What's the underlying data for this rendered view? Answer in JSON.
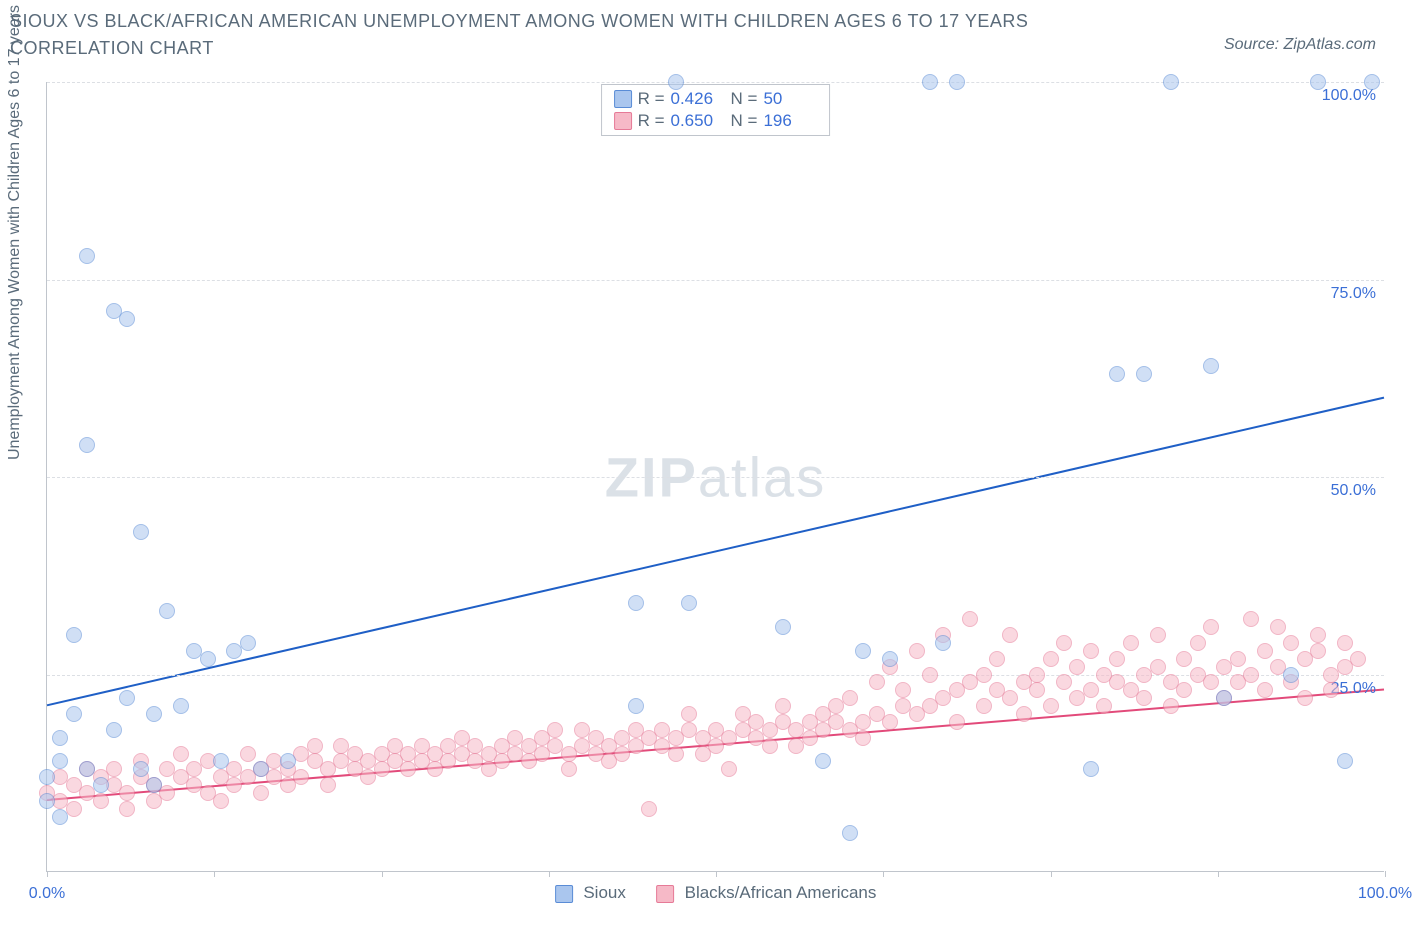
{
  "title": "SIOUX VS BLACK/AFRICAN AMERICAN UNEMPLOYMENT AMONG WOMEN WITH CHILDREN AGES 6 TO 17 YEARS CORRELATION CHART",
  "source": "Source: ZipAtlas.com",
  "y_axis_label": "Unemployment Among Women with Children Ages 6 to 17 years",
  "watermark_bold": "ZIP",
  "watermark_light": "atlas",
  "chart": {
    "type": "scatter",
    "xlim": [
      0,
      100
    ],
    "ylim": [
      0,
      100
    ],
    "y_ticks": [
      25,
      50,
      75,
      100
    ],
    "y_tick_labels": [
      "25.0%",
      "50.0%",
      "75.0%",
      "100.0%"
    ],
    "x_ticks": [
      0,
      12.5,
      25,
      37.5,
      50,
      62.5,
      75,
      87.5,
      100
    ],
    "x_tick_labels": {
      "0": "0.0%",
      "100": "100.0%"
    },
    "background_color": "#ffffff",
    "grid_color": "#dcdfe4",
    "axis_color": "#c0c5cc",
    "label_color": "#5a6b7a",
    "tick_label_color": "#3b6fd6",
    "marker_radius": 8,
    "marker_opacity": 0.55,
    "series": [
      {
        "name": "Sioux",
        "legend_label": "Sioux",
        "color_fill": "#aac6ee",
        "color_stroke": "#5a8cd6",
        "r_label": "R =",
        "r_value": "0.426",
        "n_label": "N =",
        "n_value": "50",
        "trend": {
          "x1": 0,
          "y1": 21,
          "x2": 100,
          "y2": 60,
          "color": "#1f5fc6",
          "width": 2
        },
        "points": [
          [
            0,
            12
          ],
          [
            0,
            9
          ],
          [
            1,
            7
          ],
          [
            1,
            14
          ],
          [
            1,
            17
          ],
          [
            2,
            20
          ],
          [
            2,
            30
          ],
          [
            3,
            13
          ],
          [
            3,
            78
          ],
          [
            3,
            54
          ],
          [
            4,
            11
          ],
          [
            5,
            71
          ],
          [
            5,
            18
          ],
          [
            6,
            22
          ],
          [
            6,
            70
          ],
          [
            7,
            13
          ],
          [
            7,
            43
          ],
          [
            8,
            11
          ],
          [
            8,
            20
          ],
          [
            9,
            33
          ],
          [
            10,
            21
          ],
          [
            11,
            28
          ],
          [
            12,
            27
          ],
          [
            13,
            14
          ],
          [
            14,
            28
          ],
          [
            15,
            29
          ],
          [
            16,
            13
          ],
          [
            18,
            14
          ],
          [
            44,
            34
          ],
          [
            48,
            34
          ],
          [
            44,
            21
          ],
          [
            47,
            100
          ],
          [
            55,
            31
          ],
          [
            58,
            14
          ],
          [
            60,
            5
          ],
          [
            61,
            28
          ],
          [
            66,
            100
          ],
          [
            68,
            100
          ],
          [
            63,
            27
          ],
          [
            67,
            29
          ],
          [
            78,
            13
          ],
          [
            80,
            63
          ],
          [
            82,
            63
          ],
          [
            84,
            100
          ],
          [
            87,
            64
          ],
          [
            88,
            22
          ],
          [
            93,
            25
          ],
          [
            95,
            100
          ],
          [
            97,
            14
          ],
          [
            99,
            100
          ]
        ]
      },
      {
        "name": "Blacks/African Americans",
        "legend_label": "Blacks/African Americans",
        "color_fill": "#f6b9c7",
        "color_stroke": "#e67a97",
        "r_label": "R =",
        "r_value": "0.650",
        "n_label": "N =",
        "n_value": "196",
        "trend": {
          "x1": 0,
          "y1": 9,
          "x2": 100,
          "y2": 23,
          "color": "#e24a7a",
          "width": 2
        },
        "points": [
          [
            0,
            10
          ],
          [
            1,
            9
          ],
          [
            1,
            12
          ],
          [
            2,
            8
          ],
          [
            2,
            11
          ],
          [
            3,
            10
          ],
          [
            3,
            13
          ],
          [
            4,
            9
          ],
          [
            4,
            12
          ],
          [
            5,
            11
          ],
          [
            5,
            13
          ],
          [
            6,
            10
          ],
          [
            6,
            8
          ],
          [
            7,
            12
          ],
          [
            7,
            14
          ],
          [
            8,
            11
          ],
          [
            8,
            9
          ],
          [
            9,
            13
          ],
          [
            9,
            10
          ],
          [
            10,
            12
          ],
          [
            10,
            15
          ],
          [
            11,
            11
          ],
          [
            11,
            13
          ],
          [
            12,
            10
          ],
          [
            12,
            14
          ],
          [
            13,
            12
          ],
          [
            13,
            9
          ],
          [
            14,
            13
          ],
          [
            14,
            11
          ],
          [
            15,
            12
          ],
          [
            15,
            15
          ],
          [
            16,
            13
          ],
          [
            16,
            10
          ],
          [
            17,
            12
          ],
          [
            17,
            14
          ],
          [
            18,
            13
          ],
          [
            18,
            11
          ],
          [
            19,
            15
          ],
          [
            19,
            12
          ],
          [
            20,
            14
          ],
          [
            20,
            16
          ],
          [
            21,
            13
          ],
          [
            21,
            11
          ],
          [
            22,
            14
          ],
          [
            22,
            16
          ],
          [
            23,
            13
          ],
          [
            23,
            15
          ],
          [
            24,
            12
          ],
          [
            24,
            14
          ],
          [
            25,
            15
          ],
          [
            25,
            13
          ],
          [
            26,
            16
          ],
          [
            26,
            14
          ],
          [
            27,
            13
          ],
          [
            27,
            15
          ],
          [
            28,
            14
          ],
          [
            28,
            16
          ],
          [
            29,
            15
          ],
          [
            29,
            13
          ],
          [
            30,
            16
          ],
          [
            30,
            14
          ],
          [
            31,
            15
          ],
          [
            31,
            17
          ],
          [
            32,
            14
          ],
          [
            32,
            16
          ],
          [
            33,
            15
          ],
          [
            33,
            13
          ],
          [
            34,
            16
          ],
          [
            34,
            14
          ],
          [
            35,
            15
          ],
          [
            35,
            17
          ],
          [
            36,
            16
          ],
          [
            36,
            14
          ],
          [
            37,
            15
          ],
          [
            37,
            17
          ],
          [
            38,
            16
          ],
          [
            38,
            18
          ],
          [
            39,
            15
          ],
          [
            39,
            13
          ],
          [
            40,
            16
          ],
          [
            40,
            18
          ],
          [
            41,
            15
          ],
          [
            41,
            17
          ],
          [
            42,
            16
          ],
          [
            42,
            14
          ],
          [
            43,
            17
          ],
          [
            43,
            15
          ],
          [
            44,
            18
          ],
          [
            44,
            16
          ],
          [
            45,
            8
          ],
          [
            45,
            17
          ],
          [
            46,
            16
          ],
          [
            46,
            18
          ],
          [
            47,
            17
          ],
          [
            47,
            15
          ],
          [
            48,
            18
          ],
          [
            48,
            20
          ],
          [
            49,
            17
          ],
          [
            49,
            15
          ],
          [
            50,
            18
          ],
          [
            50,
            16
          ],
          [
            51,
            13
          ],
          [
            51,
            17
          ],
          [
            52,
            18
          ],
          [
            52,
            20
          ],
          [
            53,
            17
          ],
          [
            53,
            19
          ],
          [
            54,
            18
          ],
          [
            54,
            16
          ],
          [
            55,
            19
          ],
          [
            55,
            21
          ],
          [
            56,
            18
          ],
          [
            56,
            16
          ],
          [
            57,
            19
          ],
          [
            57,
            17
          ],
          [
            58,
            20
          ],
          [
            58,
            18
          ],
          [
            59,
            19
          ],
          [
            59,
            21
          ],
          [
            60,
            18
          ],
          [
            60,
            22
          ],
          [
            61,
            19
          ],
          [
            61,
            17
          ],
          [
            62,
            20
          ],
          [
            62,
            24
          ],
          [
            63,
            26
          ],
          [
            63,
            19
          ],
          [
            64,
            21
          ],
          [
            64,
            23
          ],
          [
            65,
            20
          ],
          [
            65,
            28
          ],
          [
            66,
            25
          ],
          [
            66,
            21
          ],
          [
            67,
            22
          ],
          [
            67,
            30
          ],
          [
            68,
            23
          ],
          [
            68,
            19
          ],
          [
            69,
            24
          ],
          [
            69,
            32
          ],
          [
            70,
            21
          ],
          [
            70,
            25
          ],
          [
            71,
            23
          ],
          [
            71,
            27
          ],
          [
            72,
            22
          ],
          [
            72,
            30
          ],
          [
            73,
            24
          ],
          [
            73,
            20
          ],
          [
            74,
            25
          ],
          [
            74,
            23
          ],
          [
            75,
            21
          ],
          [
            75,
            27
          ],
          [
            76,
            24
          ],
          [
            76,
            29
          ],
          [
            77,
            22
          ],
          [
            77,
            26
          ],
          [
            78,
            23
          ],
          [
            78,
            28
          ],
          [
            79,
            25
          ],
          [
            79,
            21
          ],
          [
            80,
            24
          ],
          [
            80,
            27
          ],
          [
            81,
            23
          ],
          [
            81,
            29
          ],
          [
            82,
            25
          ],
          [
            82,
            22
          ],
          [
            83,
            26
          ],
          [
            83,
            30
          ],
          [
            84,
            24
          ],
          [
            84,
            21
          ],
          [
            85,
            27
          ],
          [
            85,
            23
          ],
          [
            86,
            25
          ],
          [
            86,
            29
          ],
          [
            87,
            24
          ],
          [
            87,
            31
          ],
          [
            88,
            26
          ],
          [
            88,
            22
          ],
          [
            89,
            27
          ],
          [
            89,
            24
          ],
          [
            90,
            25
          ],
          [
            90,
            32
          ],
          [
            91,
            23
          ],
          [
            91,
            28
          ],
          [
            92,
            26
          ],
          [
            92,
            31
          ],
          [
            93,
            24
          ],
          [
            93,
            29
          ],
          [
            94,
            27
          ],
          [
            94,
            22
          ],
          [
            95,
            28
          ],
          [
            95,
            30
          ],
          [
            96,
            25
          ],
          [
            96,
            23
          ],
          [
            97,
            29
          ],
          [
            97,
            26
          ],
          [
            98,
            27
          ]
        ]
      }
    ]
  }
}
